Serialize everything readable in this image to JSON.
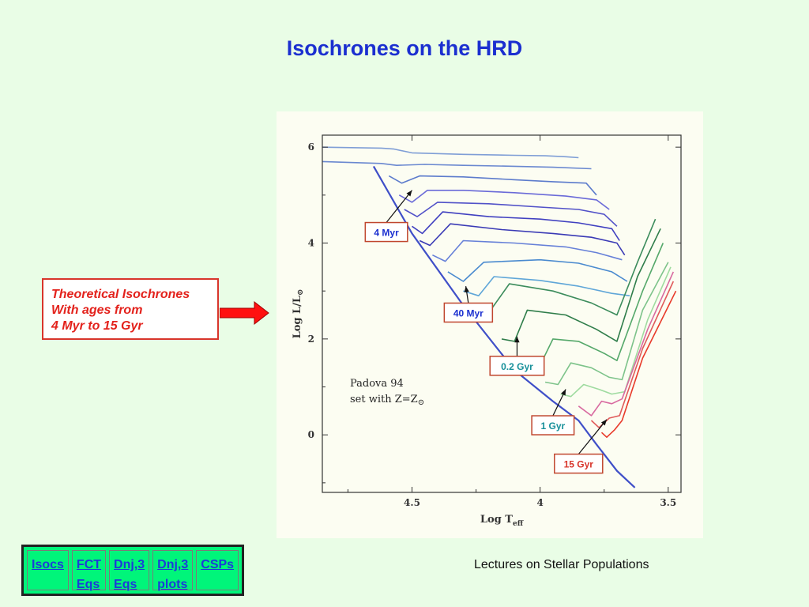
{
  "slide": {
    "title": "Isochrones on the HRD",
    "footer": "Lectures on Stellar Populations"
  },
  "callout": {
    "lines": [
      "Theoretical Isochrones",
      "With ages from",
      "4 Myr to 15 Gyr"
    ],
    "border_color": "#d8352b",
    "text_color": "#e3221c"
  },
  "nav": {
    "items": [
      {
        "lines": [
          "Isocs"
        ]
      },
      {
        "lines": [
          "FCT",
          "Eqs"
        ]
      },
      {
        "lines": [
          "Dnj,3",
          "Eqs"
        ]
      },
      {
        "lines": [
          "Dnj,3",
          "plots"
        ]
      },
      {
        "lines": [
          "CSPs"
        ]
      }
    ]
  },
  "chart_data": {
    "type": "line",
    "xlabel_main": "Log T",
    "xlabel_sub": "eff",
    "ylabel_main": "Log L/L",
    "ylabel_sym": "⊙",
    "x_ticks": [
      "4.5",
      "4",
      "3.5"
    ],
    "x_tick_values": [
      4.5,
      4.0,
      3.5
    ],
    "y_ticks": [
      "0",
      "2",
      "4",
      "6"
    ],
    "y_tick_values": [
      0,
      2,
      4,
      6
    ],
    "xlim": [
      4.85,
      3.45
    ],
    "ylim": [
      -1.2,
      6.25
    ],
    "x_reversed": true,
    "annotation_line1": "Padova 94",
    "annotation_line2": "set with Z=Z",
    "annotation_sym": "⊙",
    "labels": [
      {
        "text": "4 Myr",
        "color": "#1b2fd0",
        "box_x": 4.6,
        "box_y": 4.23,
        "tip_x": 4.5,
        "tip_y": 5.1
      },
      {
        "text": "40 Myr",
        "color": "#1b2fd0",
        "box_x": 4.28,
        "box_y": 2.55,
        "tip_x": 4.29,
        "tip_y": 3.1
      },
      {
        "text": "0.2 Gyr",
        "color": "#168f9a",
        "box_x": 4.09,
        "box_y": 1.44,
        "tip_x": 4.09,
        "tip_y": 2.05
      },
      {
        "text": "1 Gyr",
        "color": "#168f9a",
        "box_x": 3.95,
        "box_y": 0.2,
        "tip_x": 3.9,
        "tip_y": 0.95
      },
      {
        "text": "15 Gyr",
        "color": "#d8352b",
        "box_x": 3.85,
        "box_y": -0.6,
        "tip_x": 3.74,
        "tip_y": 0.32
      }
    ],
    "main_sequence": [
      [
        4.65,
        5.6
      ],
      [
        4.5,
        4.2
      ],
      [
        4.3,
        2.7
      ],
      [
        4.1,
        1.35
      ],
      [
        3.95,
        0.7
      ],
      [
        3.85,
        0.3
      ],
      [
        3.78,
        -0.2
      ],
      [
        3.7,
        -0.75
      ],
      [
        3.63,
        -1.1
      ]
    ],
    "series": [
      {
        "age": "4 Myr",
        "color": "#7f9ed6",
        "points": [
          [
            4.85,
            6.0
          ],
          [
            4.62,
            5.98
          ],
          [
            4.57,
            5.96
          ],
          [
            4.5,
            5.88
          ],
          [
            4.3,
            5.85
          ],
          [
            4.1,
            5.83
          ],
          [
            3.98,
            5.82
          ],
          [
            3.9,
            5.8
          ],
          [
            3.85,
            5.78
          ]
        ]
      },
      {
        "age": "",
        "color": "#6a88d0",
        "points": [
          [
            4.85,
            5.7
          ],
          [
            4.62,
            5.66
          ],
          [
            4.56,
            5.62
          ],
          [
            4.45,
            5.64
          ],
          [
            4.3,
            5.62
          ],
          [
            4.1,
            5.6
          ],
          [
            3.95,
            5.58
          ],
          [
            3.8,
            5.55
          ]
        ]
      },
      {
        "age": "",
        "color": "#5c7bcc",
        "points": [
          [
            4.59,
            5.4
          ],
          [
            4.54,
            5.25
          ],
          [
            4.47,
            5.4
          ],
          [
            4.3,
            5.38
          ],
          [
            4.1,
            5.32
          ],
          [
            3.95,
            5.28
          ],
          [
            3.82,
            5.25
          ],
          [
            3.78,
            5.0
          ]
        ]
      },
      {
        "age": "",
        "color": "#6a6ad8",
        "points": [
          [
            4.55,
            5.0
          ],
          [
            4.5,
            4.85
          ],
          [
            4.44,
            5.1
          ],
          [
            4.3,
            5.1
          ],
          [
            4.1,
            5.05
          ],
          [
            3.9,
            4.98
          ],
          [
            3.78,
            4.9
          ],
          [
            3.73,
            4.7
          ]
        ]
      },
      {
        "age": "",
        "color": "#5151c8",
        "points": [
          [
            4.53,
            4.7
          ],
          [
            4.48,
            4.55
          ],
          [
            4.4,
            4.85
          ],
          [
            4.2,
            4.82
          ],
          [
            4.0,
            4.75
          ],
          [
            3.85,
            4.7
          ],
          [
            3.75,
            4.6
          ],
          [
            3.7,
            4.35
          ]
        ]
      },
      {
        "age": "",
        "color": "#4040c0",
        "points": [
          [
            4.5,
            4.35
          ],
          [
            4.46,
            4.2
          ],
          [
            4.38,
            4.65
          ],
          [
            4.2,
            4.55
          ],
          [
            4.0,
            4.5
          ],
          [
            3.85,
            4.42
          ],
          [
            3.72,
            4.3
          ],
          [
            3.69,
            4.05
          ]
        ]
      },
      {
        "age": "",
        "color": "#3a3ab5",
        "points": [
          [
            4.47,
            4.05
          ],
          [
            4.43,
            3.95
          ],
          [
            4.35,
            4.4
          ],
          [
            4.15,
            4.28
          ],
          [
            3.95,
            4.2
          ],
          [
            3.8,
            4.12
          ],
          [
            3.7,
            4.0
          ],
          [
            3.67,
            3.75
          ]
        ]
      },
      {
        "age": "",
        "color": "#6680d8",
        "points": [
          [
            4.42,
            3.75
          ],
          [
            4.37,
            3.62
          ],
          [
            4.3,
            4.05
          ],
          [
            4.1,
            4.0
          ],
          [
            3.9,
            3.92
          ],
          [
            3.78,
            3.8
          ],
          [
            3.68,
            3.65
          ]
        ]
      },
      {
        "age": "40 Myr",
        "color": "#4a8acf",
        "points": [
          [
            4.36,
            3.4
          ],
          [
            4.3,
            3.2
          ],
          [
            4.22,
            3.6
          ],
          [
            4.0,
            3.65
          ],
          [
            3.85,
            3.58
          ],
          [
            3.72,
            3.4
          ],
          [
            3.66,
            3.2
          ]
        ]
      },
      {
        "age": "",
        "color": "#5fa6d8",
        "points": [
          [
            4.3,
            3.0
          ],
          [
            4.24,
            2.9
          ],
          [
            4.18,
            3.3
          ],
          [
            4.0,
            3.22
          ],
          [
            3.85,
            3.1
          ],
          [
            3.72,
            2.95
          ],
          [
            3.65,
            2.9
          ]
        ]
      },
      {
        "age": "",
        "color": "#3c8c5c",
        "points": [
          [
            4.25,
            2.6
          ],
          [
            4.2,
            2.55
          ],
          [
            4.12,
            3.15
          ],
          [
            3.95,
            3.0
          ],
          [
            3.8,
            2.75
          ],
          [
            3.7,
            2.5
          ],
          [
            3.62,
            3.6
          ],
          [
            3.55,
            4.5
          ]
        ]
      },
      {
        "age": "0.2 Gyr",
        "color": "#2f7d4a",
        "points": [
          [
            4.15,
            2.0
          ],
          [
            4.1,
            1.95
          ],
          [
            4.05,
            2.6
          ],
          [
            3.9,
            2.5
          ],
          [
            3.78,
            2.2
          ],
          [
            3.7,
            1.95
          ],
          [
            3.62,
            3.3
          ],
          [
            3.53,
            4.3
          ]
        ]
      },
      {
        "age": "",
        "color": "#55a86a",
        "points": [
          [
            4.05,
            1.5
          ],
          [
            4.0,
            1.45
          ],
          [
            3.95,
            2.0
          ],
          [
            3.85,
            1.95
          ],
          [
            3.75,
            1.7
          ],
          [
            3.7,
            1.55
          ],
          [
            3.6,
            3.0
          ],
          [
            3.52,
            4.0
          ]
        ]
      },
      {
        "age": "",
        "color": "#7dc38a",
        "points": [
          [
            3.98,
            1.1
          ],
          [
            3.93,
            1.05
          ],
          [
            3.88,
            1.5
          ],
          [
            3.8,
            1.4
          ],
          [
            3.73,
            1.2
          ],
          [
            3.68,
            1.15
          ],
          [
            3.6,
            2.6
          ],
          [
            3.5,
            3.6
          ]
        ]
      },
      {
        "age": "1 Gyr",
        "color": "#9fdba0",
        "points": [
          [
            3.92,
            0.85
          ],
          [
            3.88,
            0.8
          ],
          [
            3.83,
            1.05
          ],
          [
            3.77,
            0.95
          ],
          [
            3.72,
            0.85
          ],
          [
            3.67,
            0.9
          ],
          [
            3.58,
            2.4
          ],
          [
            3.49,
            3.5
          ]
        ]
      },
      {
        "age": "",
        "color": "#d86aa0",
        "points": [
          [
            3.85,
            0.6
          ],
          [
            3.8,
            0.4
          ],
          [
            3.76,
            0.7
          ],
          [
            3.72,
            0.65
          ],
          [
            3.68,
            0.75
          ],
          [
            3.58,
            2.2
          ],
          [
            3.48,
            3.4
          ]
        ]
      },
      {
        "age": "",
        "color": "#e05a5a",
        "points": [
          [
            3.8,
            0.3
          ],
          [
            3.77,
            0.15
          ],
          [
            3.73,
            0.35
          ],
          [
            3.69,
            0.4
          ],
          [
            3.6,
            1.8
          ],
          [
            3.48,
            3.2
          ]
        ]
      },
      {
        "age": "15 Gyr",
        "color": "#e83a2a",
        "points": [
          [
            3.76,
            0.05
          ],
          [
            3.74,
            -0.05
          ],
          [
            3.71,
            0.1
          ],
          [
            3.68,
            0.3
          ],
          [
            3.6,
            1.6
          ],
          [
            3.47,
            3.0
          ]
        ]
      }
    ],
    "grid": false
  }
}
